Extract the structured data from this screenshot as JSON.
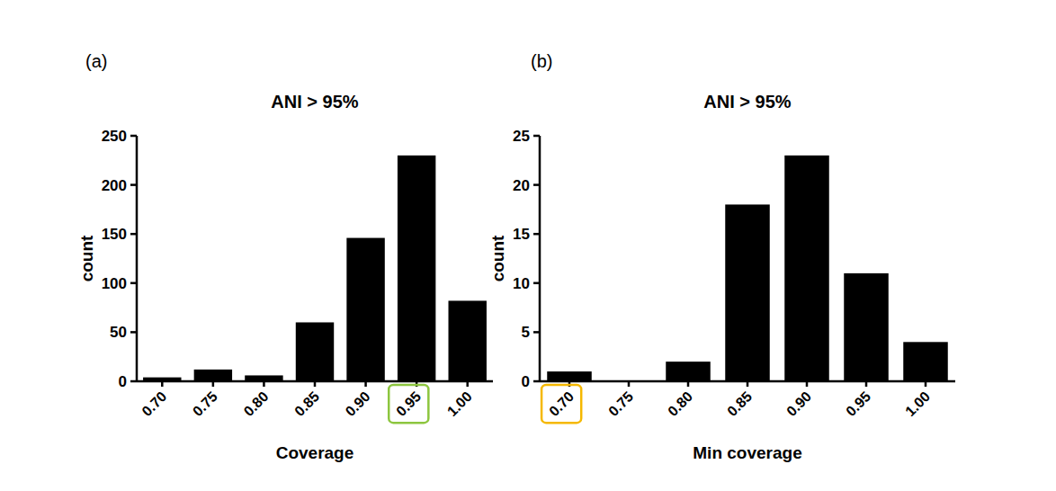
{
  "chart_data": [
    {
      "type": "bar",
      "annotations": [
        "(a)"
      ],
      "title": "ANI > 95%",
      "x_label": "Coverage",
      "y_label": "count",
      "categories": [
        "0.70",
        "0.75",
        "0.80",
        "0.85",
        "0.90",
        "0.95",
        "1.00"
      ],
      "values": [
        4,
        12,
        6,
        60,
        146,
        230,
        82
      ],
      "color": "#000000",
      "ylim": [
        0,
        250
      ],
      "yticks": [
        0,
        50,
        100,
        150,
        200,
        250
      ],
      "grid": false,
      "highlight": {
        "category": "0.95",
        "color": "#8dc63f"
      }
    },
    {
      "type": "bar",
      "annotations": [
        "(b)"
      ],
      "title": "ANI > 95%",
      "x_label": "Min coverage",
      "y_label": "count",
      "categories": [
        "0.70",
        "0.75",
        "0.80",
        "0.85",
        "0.90",
        "0.95",
        "1.00"
      ],
      "values": [
        1,
        0,
        2,
        18,
        23,
        11,
        4
      ],
      "color": "#000000",
      "ylim": [
        0,
        25
      ],
      "yticks": [
        0,
        5,
        10,
        15,
        20,
        25
      ],
      "grid": false,
      "highlight": {
        "category": "0.70",
        "color": "#f5b800"
      }
    }
  ]
}
